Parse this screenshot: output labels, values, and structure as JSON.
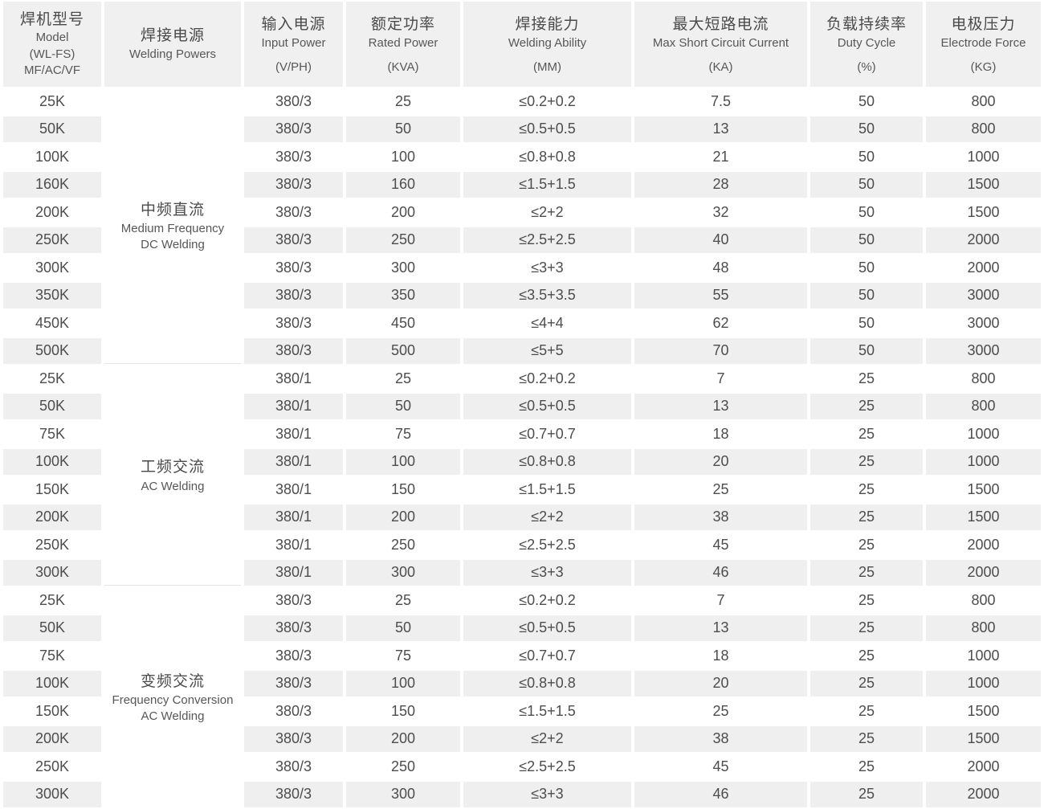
{
  "colors": {
    "header_bg": "#f0f0f0",
    "row_alt_bg": "#efefef",
    "row_bg": "#ffffff",
    "text_primary": "#4a4a4a",
    "text_secondary": "#575757",
    "divider": "#e4e4e4"
  },
  "chart_data": {
    "type": "table",
    "columns": [
      {
        "zh": "焊机型号",
        "en": "Model\n(WL-FS)\nMF/AC/VF",
        "unit": ""
      },
      {
        "zh": "焊接电源",
        "en": "Welding Powers",
        "unit": ""
      },
      {
        "zh": "输入电源",
        "en": "Input Power",
        "unit": "(V/PH)"
      },
      {
        "zh": "额定功率",
        "en": "Rated Power",
        "unit": "(KVA)"
      },
      {
        "zh": "焊接能力",
        "en": "Welding Ability",
        "unit": "(MM)"
      },
      {
        "zh": "最大短路电流",
        "en": "Max Short Circuit Current",
        "unit": "(KA)"
      },
      {
        "zh": "负载持续率",
        "en": "Duty Cycle",
        "unit": "(%)"
      },
      {
        "zh": "电极压力",
        "en": "Electrode Force",
        "unit": "(KG)"
      }
    ],
    "groups": [
      {
        "label_zh": "中频直流",
        "label_en": "Medium Frequency\nDC Welding",
        "rows": [
          [
            "25K",
            "380/3",
            "25",
            "≤0.2+0.2",
            "7.5",
            "50",
            "800"
          ],
          [
            "50K",
            "380/3",
            "50",
            "≤0.5+0.5",
            "13",
            "50",
            "800"
          ],
          [
            "100K",
            "380/3",
            "100",
            "≤0.8+0.8",
            "21",
            "50",
            "1000"
          ],
          [
            "160K",
            "380/3",
            "160",
            "≤1.5+1.5",
            "28",
            "50",
            "1500"
          ],
          [
            "200K",
            "380/3",
            "200",
            "≤2+2",
            "32",
            "50",
            "1500"
          ],
          [
            "250K",
            "380/3",
            "250",
            "≤2.5+2.5",
            "40",
            "50",
            "2000"
          ],
          [
            "300K",
            "380/3",
            "300",
            "≤3+3",
            "48",
            "50",
            "2000"
          ],
          [
            "350K",
            "380/3",
            "350",
            "≤3.5+3.5",
            "55",
            "50",
            "3000"
          ],
          [
            "450K",
            "380/3",
            "450",
            "≤4+4",
            "62",
            "50",
            "3000"
          ],
          [
            "500K",
            "380/3",
            "500",
            "≤5+5",
            "70",
            "50",
            "3000"
          ]
        ]
      },
      {
        "label_zh": "工频交流",
        "label_en": "AC Welding",
        "rows": [
          [
            "25K",
            "380/1",
            "25",
            "≤0.2+0.2",
            "7",
            "25",
            "800"
          ],
          [
            "50K",
            "380/1",
            "50",
            "≤0.5+0.5",
            "13",
            "25",
            "800"
          ],
          [
            "75K",
            "380/1",
            "75",
            "≤0.7+0.7",
            "18",
            "25",
            "1000"
          ],
          [
            "100K",
            "380/1",
            "100",
            "≤0.8+0.8",
            "20",
            "25",
            "1000"
          ],
          [
            "150K",
            "380/1",
            "150",
            "≤1.5+1.5",
            "25",
            "25",
            "1500"
          ],
          [
            "200K",
            "380/1",
            "200",
            "≤2+2",
            "38",
            "25",
            "1500"
          ],
          [
            "250K",
            "380/1",
            "250",
            "≤2.5+2.5",
            "45",
            "25",
            "2000"
          ],
          [
            "300K",
            "380/1",
            "300",
            "≤3+3",
            "46",
            "25",
            "2000"
          ]
        ]
      },
      {
        "label_zh": "变频交流",
        "label_en": "Frequency Conversion\nAC Welding",
        "rows": [
          [
            "25K",
            "380/3",
            "25",
            "≤0.2+0.2",
            "7",
            "25",
            "800"
          ],
          [
            "50K",
            "380/3",
            "50",
            "≤0.5+0.5",
            "13",
            "25",
            "800"
          ],
          [
            "75K",
            "380/3",
            "75",
            "≤0.7+0.7",
            "18",
            "25",
            "1000"
          ],
          [
            "100K",
            "380/3",
            "100",
            "≤0.8+0.8",
            "20",
            "25",
            "1000"
          ],
          [
            "150K",
            "380/3",
            "150",
            "≤1.5+1.5",
            "25",
            "25",
            "1500"
          ],
          [
            "200K",
            "380/3",
            "200",
            "≤2+2",
            "38",
            "25",
            "1500"
          ],
          [
            "250K",
            "380/3",
            "250",
            "≤2.5+2.5",
            "45",
            "25",
            "2000"
          ],
          [
            "300K",
            "380/3",
            "300",
            "≤3+3",
            "46",
            "25",
            "2000"
          ]
        ]
      }
    ]
  }
}
